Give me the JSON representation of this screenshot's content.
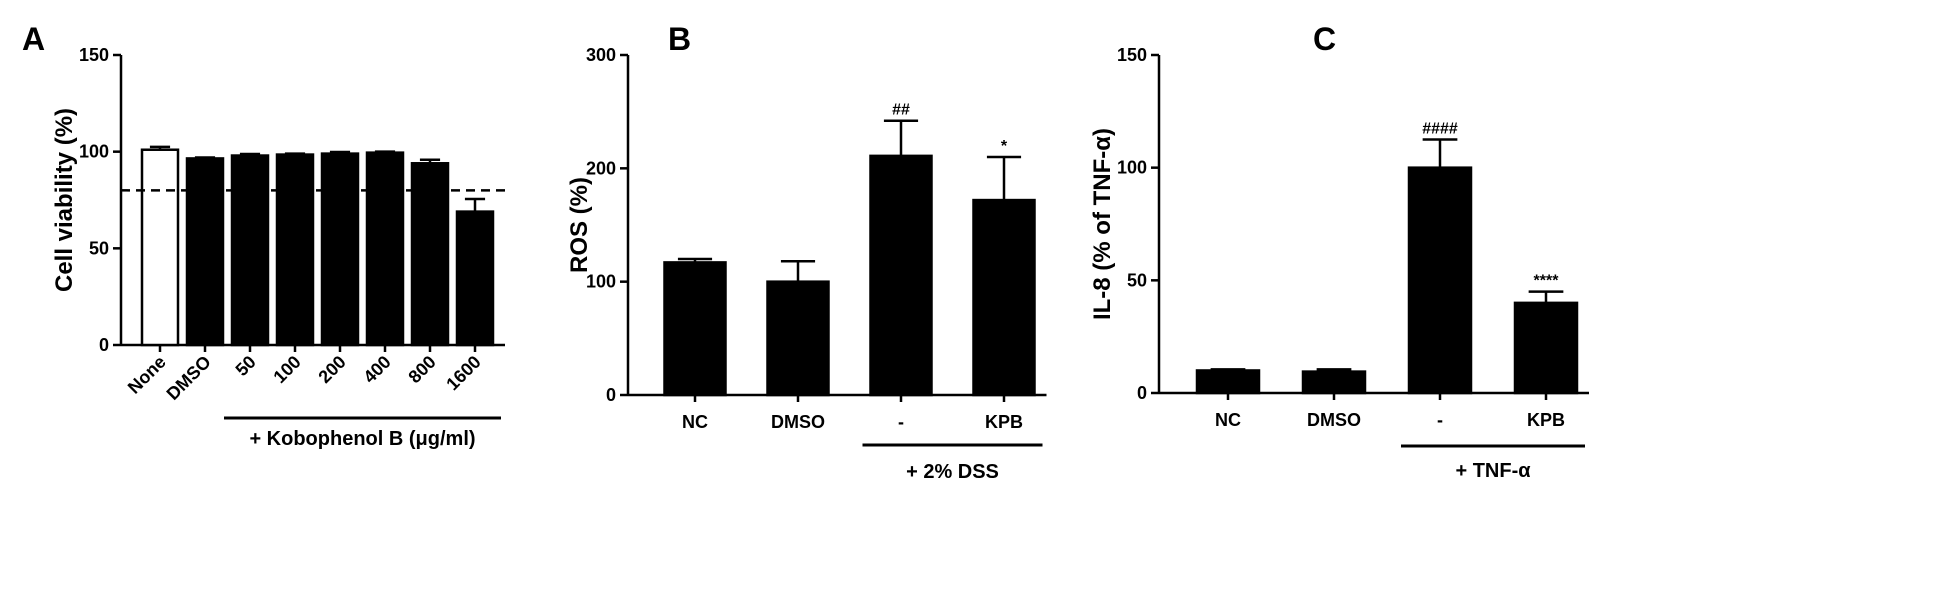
{
  "chart_data": [
    {
      "panel": "A",
      "type": "bar",
      "ylabel": "Cell viability (%)",
      "ylim": [
        0,
        150
      ],
      "yticks": [
        0,
        50,
        100,
        150
      ],
      "categories": [
        "None",
        "DMSO",
        "50",
        "100",
        "200",
        "400",
        "800",
        "1600"
      ],
      "values": [
        101,
        96.5,
        98,
        98.5,
        99,
        99.5,
        94,
        69
      ],
      "errors": [
        1.5,
        0.5,
        0.8,
        0.5,
        0.8,
        0.5,
        1.8,
        6.5
      ],
      "fills": [
        "#ffffff",
        "#000000",
        "#000000",
        "#000000",
        "#000000",
        "#000000",
        "#000000",
        "#000000"
      ],
      "significance": [
        "",
        "",
        "",
        "",
        "",
        "",
        "",
        ""
      ],
      "reference_line": 80,
      "group_label": "+ Kobophenol B (μg/ml)",
      "group_start": 2,
      "group_end": 7,
      "rotated_xticks": true
    },
    {
      "panel": "B",
      "type": "bar",
      "ylabel": "ROS (%)",
      "ylim": [
        0,
        300
      ],
      "yticks": [
        0,
        100,
        200,
        300
      ],
      "categories": [
        "NC",
        "DMSO",
        "-",
        "KPB"
      ],
      "values": [
        117,
        100,
        211,
        172
      ],
      "errors": [
        3,
        18,
        31,
        38
      ],
      "fills": [
        "#000000",
        "#000000",
        "#000000",
        "#000000"
      ],
      "significance": [
        "",
        "",
        "##",
        "*"
      ],
      "group_label": "+ 2% DSS",
      "group_start": 2,
      "group_end": 3,
      "rotated_xticks": false
    },
    {
      "panel": "C",
      "type": "bar",
      "ylabel": "IL-8 (% of TNF-α)",
      "ylim": [
        0,
        150
      ],
      "yticks": [
        0,
        50,
        100,
        150
      ],
      "categories": [
        "NC",
        "DMSO",
        "-",
        "KPB"
      ],
      "values": [
        10,
        9.5,
        100,
        40
      ],
      "errors": [
        0.5,
        1,
        12.5,
        5
      ],
      "fills": [
        "#000000",
        "#000000",
        "#000000",
        "#000000"
      ],
      "significance": [
        "",
        "",
        "####",
        "****"
      ],
      "group_label": "+ TNF-α",
      "group_start": 2,
      "group_end": 3,
      "rotated_xticks": false
    }
  ]
}
